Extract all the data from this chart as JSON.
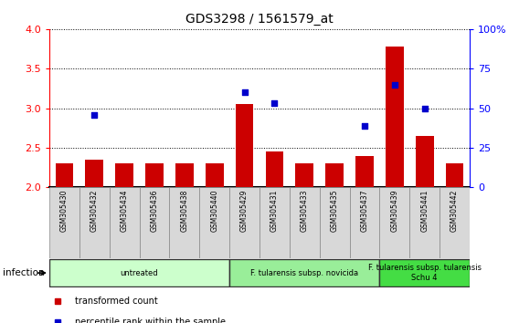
{
  "title": "GDS3298 / 1561579_at",
  "samples": [
    "GSM305430",
    "GSM305432",
    "GSM305434",
    "GSM305436",
    "GSM305438",
    "GSM305440",
    "GSM305429",
    "GSM305431",
    "GSM305433",
    "GSM305435",
    "GSM305437",
    "GSM305439",
    "GSM305441",
    "GSM305442"
  ],
  "bar_values": [
    2.3,
    2.35,
    2.3,
    2.3,
    2.3,
    2.3,
    3.05,
    2.45,
    2.3,
    2.3,
    2.4,
    3.78,
    2.65,
    2.3
  ],
  "dot_values": [
    null,
    46,
    null,
    null,
    null,
    null,
    60,
    53,
    null,
    null,
    39,
    65,
    50,
    null
  ],
  "ylim_left": [
    2.0,
    4.0
  ],
  "ylim_right": [
    0,
    100
  ],
  "yticks_left": [
    2.0,
    2.5,
    3.0,
    3.5,
    4.0
  ],
  "yticks_right": [
    0,
    25,
    50,
    75,
    100
  ],
  "bar_color": "#cc0000",
  "dot_color": "#0000cc",
  "groups": [
    {
      "label": "untreated",
      "start": 0,
      "end": 6,
      "color": "#ccffcc"
    },
    {
      "label": "F. tularensis subsp. novicida",
      "start": 6,
      "end": 11,
      "color": "#99ee99"
    },
    {
      "label": "F. tularensis subsp. tularensis\nSchu 4",
      "start": 11,
      "end": 14,
      "color": "#44dd44"
    }
  ],
  "infection_label": "infection",
  "legend_items": [
    {
      "label": "transformed count",
      "color": "#cc0000"
    },
    {
      "label": "percentile rank within the sample",
      "color": "#0000cc"
    }
  ]
}
